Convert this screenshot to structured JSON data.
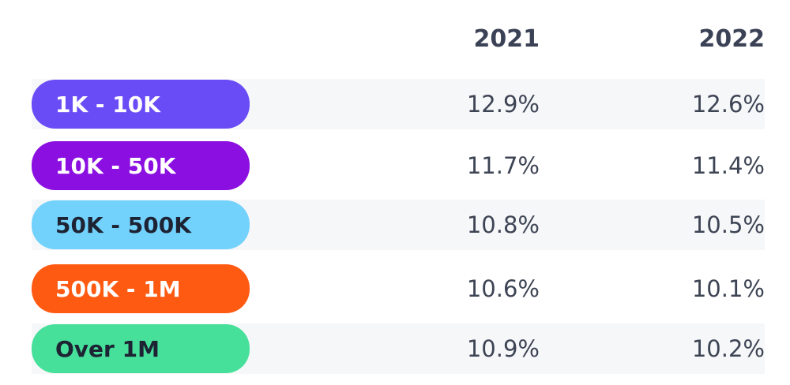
{
  "table": {
    "columns": [
      "2021",
      "2022"
    ],
    "rows": [
      {
        "label": "1K - 10K",
        "color": "#6a4cf6",
        "text_color": "#ffffff",
        "values": [
          "12.9%",
          "12.6%"
        ]
      },
      {
        "label": "10K - 50K",
        "color": "#8a0fe0",
        "text_color": "#ffffff",
        "values": [
          "11.7%",
          "11.4%"
        ]
      },
      {
        "label": "50K - 500K",
        "color": "#72d2fc",
        "text_color": "#1d2333",
        "values": [
          "10.8%",
          "10.5%"
        ]
      },
      {
        "label": "500K - 1M",
        "color": "#ff5a12",
        "text_color": "#ffffff",
        "values": [
          "10.6%",
          "10.1%"
        ]
      },
      {
        "label": "Over 1M",
        "color": "#46e09b",
        "text_color": "#1d2333",
        "values": [
          "10.9%",
          "10.2%"
        ]
      }
    ]
  }
}
